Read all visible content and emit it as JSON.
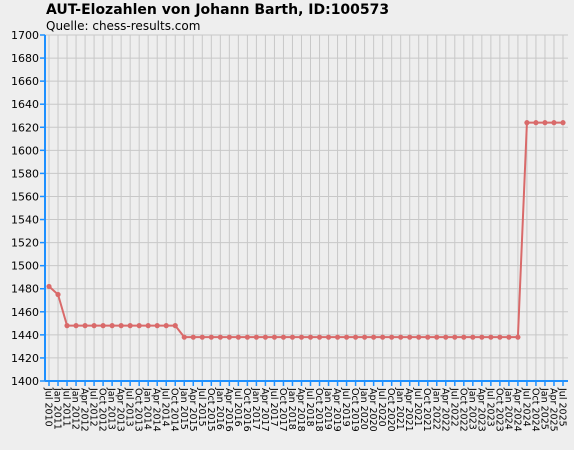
{
  "chart_data": {
    "type": "line",
    "title": "AUT-Elozahlen von Johann Barth, ID:100573",
    "subtitle": "Quelle: chess-results.com",
    "xlabel": "",
    "ylabel": "",
    "ylim": [
      1400,
      1700
    ],
    "yticks": [
      1400,
      1420,
      1440,
      1460,
      1480,
      1500,
      1520,
      1540,
      1560,
      1580,
      1600,
      1620,
      1640,
      1660,
      1680,
      1700
    ],
    "grid": true,
    "x": [
      "Jul 2010",
      "Jan 2011",
      "Jul 2011",
      "Jan 2012",
      "Apr 2012",
      "Jul 2012",
      "Oct 2012",
      "Jan 2013",
      "Apr 2013",
      "Jul 2013",
      "Oct 2013",
      "Jan 2014",
      "Apr 2014",
      "Jul 2014",
      "Oct 2014",
      "Jan 2015",
      "Apr 2015",
      "Jul 2015",
      "Oct 2015",
      "Jan 2016",
      "Apr 2016",
      "Jul 2016",
      "Oct 2016",
      "Jan 2017",
      "Apr 2017",
      "Jul 2017",
      "Oct 2017",
      "Jan 2018",
      "Apr 2018",
      "Jul 2018",
      "Oct 2018",
      "Jan 2019",
      "Apr 2019",
      "Jul 2019",
      "Oct 2019",
      "Jan 2020",
      "Apr 2020",
      "Jul 2020",
      "Oct 2020",
      "Jan 2021",
      "Apr 2021",
      "Jul 2021",
      "Oct 2021",
      "Jan 2022",
      "Apr 2022",
      "Jul 2022",
      "Oct 2022",
      "Jan 2023",
      "Apr 2023",
      "Jul 2023",
      "Oct 2023",
      "Jan 2024",
      "Apr 2024",
      "Jul 2024",
      "Oct 2024",
      "Jan 2025",
      "Apr 2025",
      "Jul 2025"
    ],
    "series": [
      {
        "values": [
          1482,
          1475,
          1448,
          1448,
          1448,
          1448,
          1448,
          1448,
          1448,
          1448,
          1448,
          1448,
          1448,
          1448,
          1448,
          1438,
          1438,
          1438,
          1438,
          1438,
          1438,
          1438,
          1438,
          1438,
          1438,
          1438,
          1438,
          1438,
          1438,
          1438,
          1438,
          1438,
          1438,
          1438,
          1438,
          1438,
          1438,
          1438,
          1438,
          1438,
          1438,
          1438,
          1438,
          1438,
          1438,
          1438,
          1438,
          1438,
          1438,
          1438,
          1438,
          1438,
          1438,
          1624,
          1624,
          1624,
          1624,
          1624
        ]
      }
    ],
    "colors": {
      "line": "#d96a6a",
      "axis": "#1e90ff",
      "grid": "#c8c8c8",
      "plot_bg": "#eeeeee"
    }
  }
}
